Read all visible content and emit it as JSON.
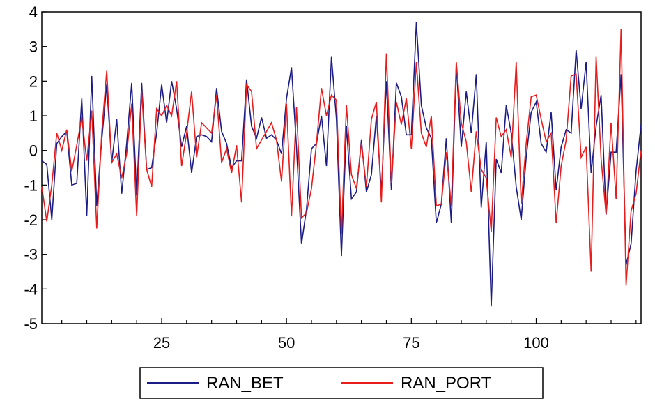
{
  "chart_data": {
    "type": "line",
    "x_start": 1,
    "xlim": [
      1,
      121
    ],
    "ylim": [
      -5,
      4
    ],
    "x_ticks": [
      25,
      50,
      75,
      100
    ],
    "y_ticks": [
      -5,
      -4,
      -3,
      -2,
      -1,
      0,
      1,
      2,
      3,
      4
    ],
    "grid": false,
    "legend_position": "bottom-center",
    "series": [
      {
        "name": "RAN_BET",
        "color": "#1c1c86",
        "values": [
          -0.3,
          -0.4,
          -2.0,
          0.2,
          0.4,
          0.55,
          -1.0,
          -0.95,
          1.5,
          -1.9,
          2.15,
          -1.6,
          0.3,
          1.9,
          -0.35,
          0.9,
          -1.25,
          0.2,
          1.95,
          -1.3,
          1.95,
          -0.55,
          -0.5,
          0.5,
          1.9,
          0.8,
          2.0,
          1.2,
          0.1,
          0.7,
          -0.65,
          0.4,
          0.45,
          0.4,
          0.25,
          1.8,
          0.55,
          0.2,
          -0.5,
          -0.3,
          -0.3,
          2.05,
          0.7,
          0.35,
          0.95,
          0.35,
          0.45,
          0.3,
          -0.1,
          1.5,
          2.4,
          0.1,
          -2.7,
          -1.7,
          0.05,
          0.2,
          1.0,
          -0.45,
          2.7,
          0.9,
          -3.05,
          0.7,
          -1.4,
          -1.2,
          0.3,
          -1.2,
          -0.7,
          1.0,
          -1.2,
          2.0,
          -1.15,
          1.95,
          1.55,
          0.45,
          0.45,
          3.7,
          1.3,
          0.65,
          0.35,
          -2.1,
          -1.55,
          0.35,
          -2.1,
          2.45,
          0.1,
          1.7,
          0.5,
          2.2,
          -1.65,
          0.25,
          -4.5,
          -0.25,
          -0.65,
          1.3,
          0.5,
          -1.05,
          -2.0,
          -0.2,
          1.1,
          1.4,
          0.2,
          -0.05,
          1.1,
          -1.15,
          0.1,
          0.6,
          0.5,
          2.9,
          1.2,
          2.55,
          -0.65,
          0.7,
          1.6,
          -1.85,
          -0.05,
          -0.05,
          2.2,
          -3.3,
          -2.7,
          -0.6,
          0.75
        ]
      },
      {
        "name": "RAN_PORT",
        "color": "#e81c1c",
        "values": [
          -1.05,
          -2.05,
          -1.0,
          0.5,
          0.0,
          0.6,
          -0.6,
          0.15,
          0.95,
          -0.3,
          1.15,
          -2.25,
          0.5,
          2.3,
          -0.35,
          -0.1,
          -0.8,
          -0.1,
          1.35,
          -1.9,
          1.7,
          -0.55,
          -1.05,
          1.2,
          1.0,
          1.3,
          1.0,
          2.0,
          -0.45,
          0.5,
          1.7,
          -0.2,
          0.8,
          0.65,
          0.5,
          1.6,
          -0.35,
          0.05,
          -0.65,
          0.15,
          -1.5,
          1.9,
          1.7,
          0.05,
          0.3,
          0.55,
          0.8,
          0.3,
          -0.9,
          1.35,
          -1.9,
          1.25,
          -1.95,
          -1.8,
          -1.1,
          0.2,
          1.8,
          1.0,
          1.6,
          1.45,
          -2.4,
          1.3,
          -0.7,
          -1.1,
          0.2,
          -1.05,
          0.9,
          1.4,
          -1.5,
          2.8,
          -0.95,
          1.4,
          0.75,
          1.5,
          0.05,
          2.55,
          0.5,
          0.1,
          1.0,
          -1.6,
          -1.55,
          -0.05,
          -1.6,
          2.55,
          0.8,
          0.25,
          -1.2,
          0.55,
          -0.55,
          -0.8,
          -2.35,
          0.95,
          0.4,
          0.6,
          -0.2,
          2.55,
          -1.55,
          0.2,
          1.55,
          1.6,
          0.9,
          0.25,
          0.5,
          -2.1,
          -0.45,
          0.3,
          2.15,
          2.2,
          -0.2,
          0.1,
          -3.5,
          2.7,
          -0.25,
          -1.85,
          0.8,
          -1.4,
          3.5,
          -3.9,
          -1.75,
          -1.25,
          0.0
        ]
      }
    ]
  }
}
